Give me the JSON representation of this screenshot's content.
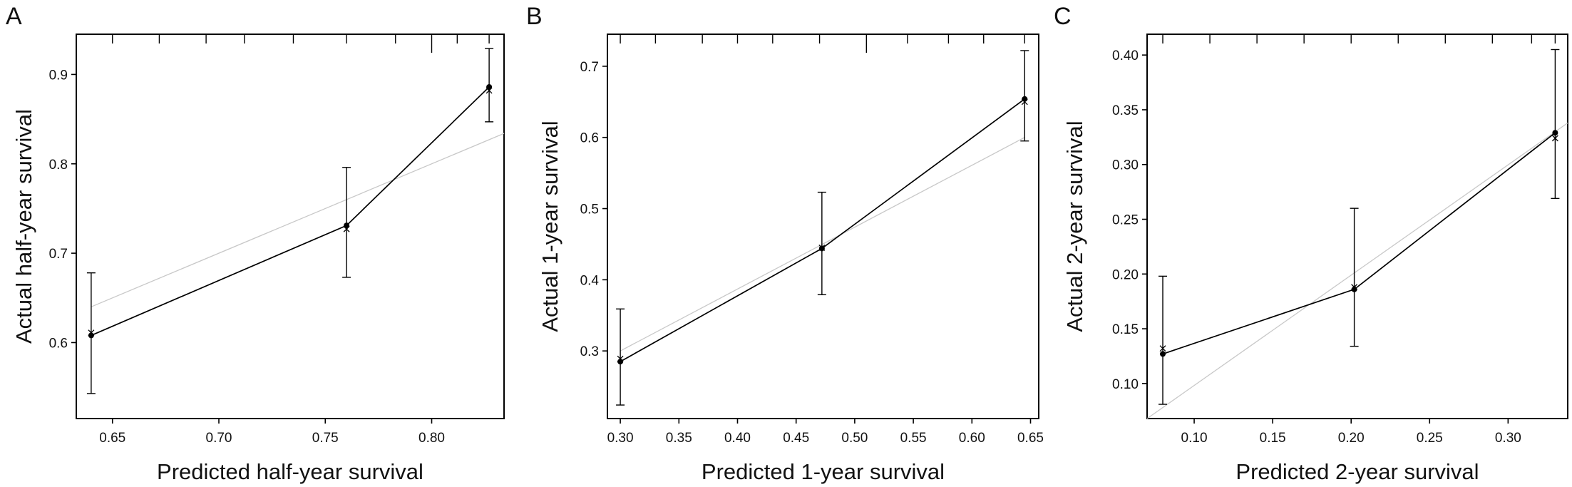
{
  "chart_data": [
    {
      "type": "scatter",
      "panel": "A",
      "xlabel": "Predicted half-year survival",
      "ylabel": "Actual half-year survival",
      "xlim": [
        0.633,
        0.834
      ],
      "ylim": [
        0.515,
        0.945
      ],
      "xticks": [
        0.65,
        0.7,
        0.75,
        0.8
      ],
      "xtick_labels": [
        "0.65",
        "0.70",
        "0.75",
        "0.80"
      ],
      "yticks": [
        0.6,
        0.7,
        0.8,
        0.9
      ],
      "ytick_labels": [
        "0.6",
        "0.7",
        "0.8",
        "0.9"
      ],
      "ideal_line": [
        [
          0.64,
          0.64
        ],
        [
          0.834,
          0.834
        ]
      ],
      "points": [
        {
          "x": 0.64,
          "y": 0.608,
          "lower": 0.543,
          "upper": 0.678,
          "cross_y": 0.611
        },
        {
          "x": 0.76,
          "y": 0.731,
          "lower": 0.673,
          "upper": 0.796,
          "cross_y": 0.727
        },
        {
          "x": 0.827,
          "y": 0.886,
          "lower": 0.847,
          "upper": 0.929,
          "cross_y": 0.882
        }
      ],
      "rug": [
        0.65,
        0.672,
        0.694,
        0.712,
        0.735,
        0.76,
        0.783,
        0.8,
        0.812,
        0.827
      ],
      "rug_long": [
        0.8
      ]
    },
    {
      "type": "scatter",
      "panel": "B",
      "xlabel": "Predicted 1-year survival",
      "ylabel": "Actual 1-year survival",
      "xlim": [
        0.289,
        0.657
      ],
      "ylim": [
        0.205,
        0.745
      ],
      "xticks": [
        0.3,
        0.35,
        0.4,
        0.45,
        0.5,
        0.55,
        0.6,
        0.65
      ],
      "xtick_labels": [
        "0.30",
        "0.35",
        "0.40",
        "0.45",
        "0.50",
        "0.55",
        "0.60",
        "0.65"
      ],
      "yticks": [
        0.3,
        0.4,
        0.5,
        0.6,
        0.7
      ],
      "ytick_labels": [
        "0.3",
        "0.4",
        "0.5",
        "0.6",
        "0.7"
      ],
      "ideal_line": [
        [
          0.3,
          0.3
        ],
        [
          0.645,
          0.6
        ]
      ],
      "points": [
        {
          "x": 0.3,
          "y": 0.285,
          "lower": 0.224,
          "upper": 0.359,
          "cross_y": 0.289
        },
        {
          "x": 0.472,
          "y": 0.444,
          "lower": 0.379,
          "upper": 0.523,
          "cross_y": 0.445
        },
        {
          "x": 0.645,
          "y": 0.654,
          "lower": 0.595,
          "upper": 0.722,
          "cross_y": 0.65
        }
      ],
      "rug": [
        0.3,
        0.33,
        0.37,
        0.4,
        0.43,
        0.47,
        0.51,
        0.545,
        0.58,
        0.61,
        0.645
      ],
      "rug_long": [
        0.51
      ]
    },
    {
      "type": "scatter",
      "panel": "C",
      "xlabel": "Predicted 2-year survival",
      "ylabel": "Actual 2-year survival",
      "xlim": [
        0.07,
        0.338
      ],
      "ylim": [
        0.068,
        0.419
      ],
      "xticks": [
        0.1,
        0.15,
        0.2,
        0.25,
        0.3
      ],
      "xtick_labels": [
        "0.10",
        "0.15",
        "0.20",
        "0.25",
        "0.30"
      ],
      "yticks": [
        0.1,
        0.15,
        0.2,
        0.25,
        0.3,
        0.35,
        0.4
      ],
      "ytick_labels": [
        "0.10",
        "0.15",
        "0.20",
        "0.25",
        "0.30",
        "0.35",
        "0.40"
      ],
      "ideal_line": [
        [
          0.07,
          0.068
        ],
        [
          0.338,
          0.338
        ]
      ],
      "points": [
        {
          "x": 0.08,
          "y": 0.127,
          "lower": 0.081,
          "upper": 0.198,
          "cross_y": 0.132
        },
        {
          "x": 0.202,
          "y": 0.186,
          "lower": 0.134,
          "upper": 0.26,
          "cross_y": 0.188
        },
        {
          "x": 0.33,
          "y": 0.329,
          "lower": 0.269,
          "upper": 0.405,
          "cross_y": 0.324
        }
      ],
      "rug": [
        0.08,
        0.11,
        0.14,
        0.17,
        0.2,
        0.23,
        0.26,
        0.29,
        0.315,
        0.33
      ],
      "rug_long": [
        0.202
      ]
    }
  ]
}
